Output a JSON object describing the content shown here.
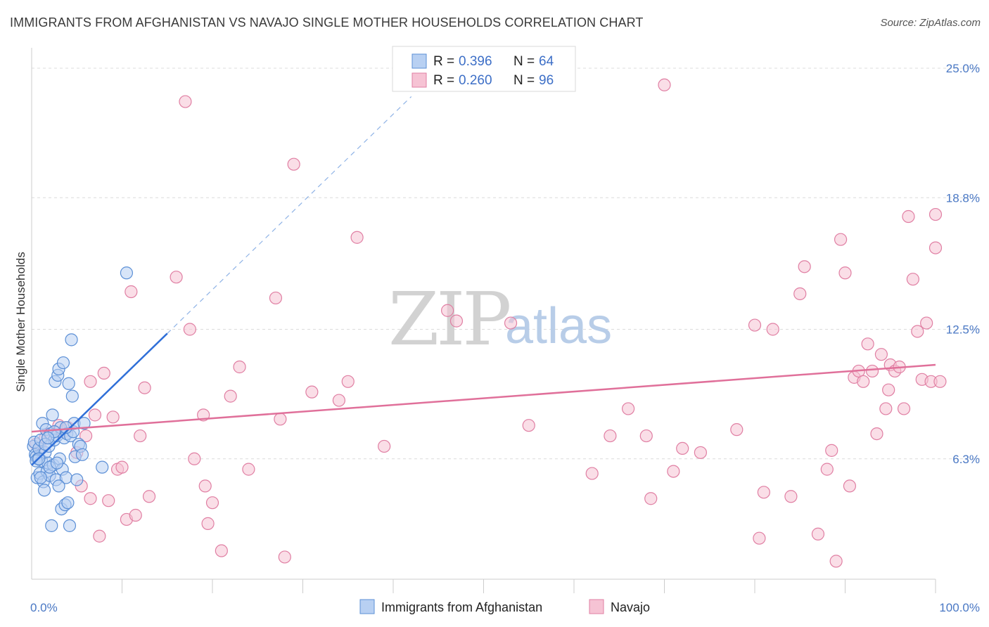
{
  "title": "IMMIGRANTS FROM AFGHANISTAN VS NAVAJO SINGLE MOTHER HOUSEHOLDS CORRELATION CHART",
  "source": "Source: ZipAtlas.com",
  "watermark": {
    "zip": "ZIP",
    "atlas": "atlas"
  },
  "colors": {
    "blue": "#5b8fd6",
    "blue_fill": "#b8d0f2",
    "blue_line": "#2f6fd8",
    "pink": "#e07fa3",
    "pink_fill": "#f6c3d4",
    "pink_line": "#e0709a",
    "tick_text": "#4a78c4"
  },
  "legend": {
    "rows": [
      {
        "r_label": "R =",
        "r_value": "0.396",
        "n_label": "N =",
        "n_value": "64"
      },
      {
        "r_label": "R =",
        "r_value": "0.260",
        "n_label": "N =",
        "n_value": "96"
      }
    ]
  },
  "bottom_legend": [
    "Immigrants from Afghanistan",
    "Navajo"
  ],
  "chart_data": {
    "type": "scatter",
    "title": "IMMIGRANTS FROM AFGHANISTAN VS NAVAJO SINGLE MOTHER HOUSEHOLDS CORRELATION CHART",
    "xlabel": "",
    "ylabel": "Single Mother Households",
    "xlim": [
      0,
      100
    ],
    "ylim": [
      0,
      26
    ],
    "x_tick_labels": [
      "0.0%",
      "100.0%"
    ],
    "y_ticks": [
      6.3,
      12.5,
      18.8,
      25.0
    ],
    "y_tick_labels": [
      "6.3%",
      "12.5%",
      "18.8%",
      "25.0%"
    ],
    "grid": true,
    "legend_position": "top-center",
    "series": [
      {
        "name": "Immigrants from Afghanistan",
        "color": "#5b8fd6",
        "trend": {
          "x0": 0.0,
          "y0": 6.0,
          "x1": 15.0,
          "y1": 12.3,
          "dashed_to_x": 42.0
        },
        "points": [
          [
            0.2,
            6.9
          ],
          [
            0.3,
            7.1
          ],
          [
            0.4,
            6.5
          ],
          [
            0.5,
            6.4
          ],
          [
            0.6,
            5.4
          ],
          [
            0.7,
            6.3
          ],
          [
            0.8,
            6.8
          ],
          [
            0.9,
            5.6
          ],
          [
            1.0,
            7.2
          ],
          [
            1.1,
            6.2
          ],
          [
            1.2,
            8.0
          ],
          [
            1.3,
            5.2
          ],
          [
            1.4,
            4.8
          ],
          [
            1.5,
            6.6
          ],
          [
            1.6,
            7.7
          ],
          [
            1.7,
            5.7
          ],
          [
            1.8,
            6.1
          ],
          [
            1.9,
            6.9
          ],
          [
            2.0,
            5.5
          ],
          [
            2.1,
            7.5
          ],
          [
            2.2,
            3.1
          ],
          [
            2.3,
            8.4
          ],
          [
            2.4,
            6.0
          ],
          [
            2.5,
            7.2
          ],
          [
            2.6,
            10.0
          ],
          [
            2.7,
            5.3
          ],
          [
            2.8,
            7.4
          ],
          [
            2.9,
            10.3
          ],
          [
            3.0,
            10.6
          ],
          [
            3.1,
            6.3
          ],
          [
            3.2,
            7.8
          ],
          [
            3.3,
            3.9
          ],
          [
            3.4,
            5.8
          ],
          [
            3.5,
            10.9
          ],
          [
            3.6,
            7.3
          ],
          [
            3.7,
            4.1
          ],
          [
            3.8,
            5.4
          ],
          [
            3.9,
            7.5
          ],
          [
            4.0,
            4.2
          ],
          [
            4.1,
            9.9
          ],
          [
            4.2,
            3.1
          ],
          [
            4.3,
            7.4
          ],
          [
            4.4,
            12.0
          ],
          [
            4.5,
            9.3
          ],
          [
            4.6,
            7.6
          ],
          [
            4.7,
            8.0
          ],
          [
            4.8,
            6.4
          ],
          [
            5.0,
            5.3
          ],
          [
            5.2,
            7.0
          ],
          [
            5.4,
            6.9
          ],
          [
            5.6,
            6.5
          ],
          [
            5.8,
            8.0
          ],
          [
            7.8,
            5.9
          ],
          [
            10.5,
            15.2
          ],
          [
            0.5,
            6.2
          ],
          [
            1.0,
            5.4
          ],
          [
            1.5,
            7.0
          ],
          [
            2.0,
            5.9
          ],
          [
            2.5,
            7.6
          ],
          [
            3.0,
            5.0
          ],
          [
            0.8,
            6.3
          ],
          [
            1.8,
            7.3
          ],
          [
            2.8,
            6.1
          ],
          [
            3.8,
            7.8
          ]
        ]
      },
      {
        "name": "Navajo",
        "color": "#e07fa3",
        "trend": {
          "x0": 0.0,
          "y0": 7.6,
          "x1": 100.0,
          "y1": 10.8
        },
        "points": [
          [
            0.5,
            7.0
          ],
          [
            1.0,
            6.8
          ],
          [
            1.5,
            7.3
          ],
          [
            2.0,
            7.5
          ],
          [
            3.0,
            7.9
          ],
          [
            3.5,
            7.6
          ],
          [
            4.0,
            7.8
          ],
          [
            5.0,
            6.6
          ],
          [
            5.5,
            5.0
          ],
          [
            6.0,
            7.4
          ],
          [
            6.5,
            4.4
          ],
          [
            6.5,
            10.0
          ],
          [
            7.0,
            8.4
          ],
          [
            7.5,
            2.6
          ],
          [
            8.0,
            10.4
          ],
          [
            8.5,
            4.3
          ],
          [
            9.0,
            8.3
          ],
          [
            9.5,
            5.8
          ],
          [
            10.0,
            5.9
          ],
          [
            10.5,
            3.4
          ],
          [
            11.0,
            14.3
          ],
          [
            11.5,
            3.6
          ],
          [
            12.0,
            7.4
          ],
          [
            12.5,
            9.7
          ],
          [
            13.0,
            4.5
          ],
          [
            16.0,
            15.0
          ],
          [
            17.0,
            23.4
          ],
          [
            17.5,
            12.5
          ],
          [
            18.0,
            6.3
          ],
          [
            19.0,
            8.4
          ],
          [
            19.2,
            5.0
          ],
          [
            19.5,
            3.2
          ],
          [
            20.0,
            4.2
          ],
          [
            21.0,
            1.9
          ],
          [
            22.0,
            9.3
          ],
          [
            23.0,
            10.7
          ],
          [
            24.0,
            5.8
          ],
          [
            27.0,
            14.0
          ],
          [
            27.5,
            8.2
          ],
          [
            28.0,
            1.6
          ],
          [
            29.0,
            20.4
          ],
          [
            31.0,
            9.5
          ],
          [
            34.0,
            9.1
          ],
          [
            35.0,
            10.0
          ],
          [
            36.0,
            16.9
          ],
          [
            39.0,
            6.9
          ],
          [
            46.0,
            13.4
          ],
          [
            47.0,
            12.9
          ],
          [
            53.0,
            12.8
          ],
          [
            55.0,
            7.9
          ],
          [
            62.0,
            5.6
          ],
          [
            64.0,
            7.4
          ],
          [
            66.0,
            8.7
          ],
          [
            68.0,
            7.4
          ],
          [
            68.5,
            4.4
          ],
          [
            70.0,
            24.2
          ],
          [
            71.0,
            5.7
          ],
          [
            72.0,
            6.8
          ],
          [
            74.0,
            6.6
          ],
          [
            78.0,
            7.7
          ],
          [
            80.0,
            12.7
          ],
          [
            80.5,
            2.5
          ],
          [
            81.0,
            4.7
          ],
          [
            82.0,
            12.5
          ],
          [
            84.0,
            4.5
          ],
          [
            85.0,
            14.2
          ],
          [
            85.5,
            15.5
          ],
          [
            87.0,
            2.7
          ],
          [
            88.0,
            5.8
          ],
          [
            88.5,
            6.7
          ],
          [
            89.0,
            1.4
          ],
          [
            89.5,
            16.8
          ],
          [
            90.0,
            15.2
          ],
          [
            90.5,
            5.0
          ],
          [
            91.0,
            10.2
          ],
          [
            91.5,
            10.5
          ],
          [
            92.0,
            10.0
          ],
          [
            92.5,
            11.8
          ],
          [
            93.0,
            10.5
          ],
          [
            93.5,
            7.5
          ],
          [
            94.0,
            11.3
          ],
          [
            94.5,
            8.7
          ],
          [
            94.8,
            9.6
          ],
          [
            95.0,
            10.8
          ],
          [
            95.5,
            10.5
          ],
          [
            96.0,
            10.7
          ],
          [
            96.5,
            8.7
          ],
          [
            97.0,
            17.9
          ],
          [
            97.5,
            14.9
          ],
          [
            98.0,
            12.4
          ],
          [
            98.5,
            10.1
          ],
          [
            99.0,
            12.8
          ],
          [
            99.5,
            10.0
          ],
          [
            100.0,
            18.0
          ],
          [
            100.0,
            16.4
          ],
          [
            100.5,
            10.0
          ]
        ]
      }
    ]
  }
}
